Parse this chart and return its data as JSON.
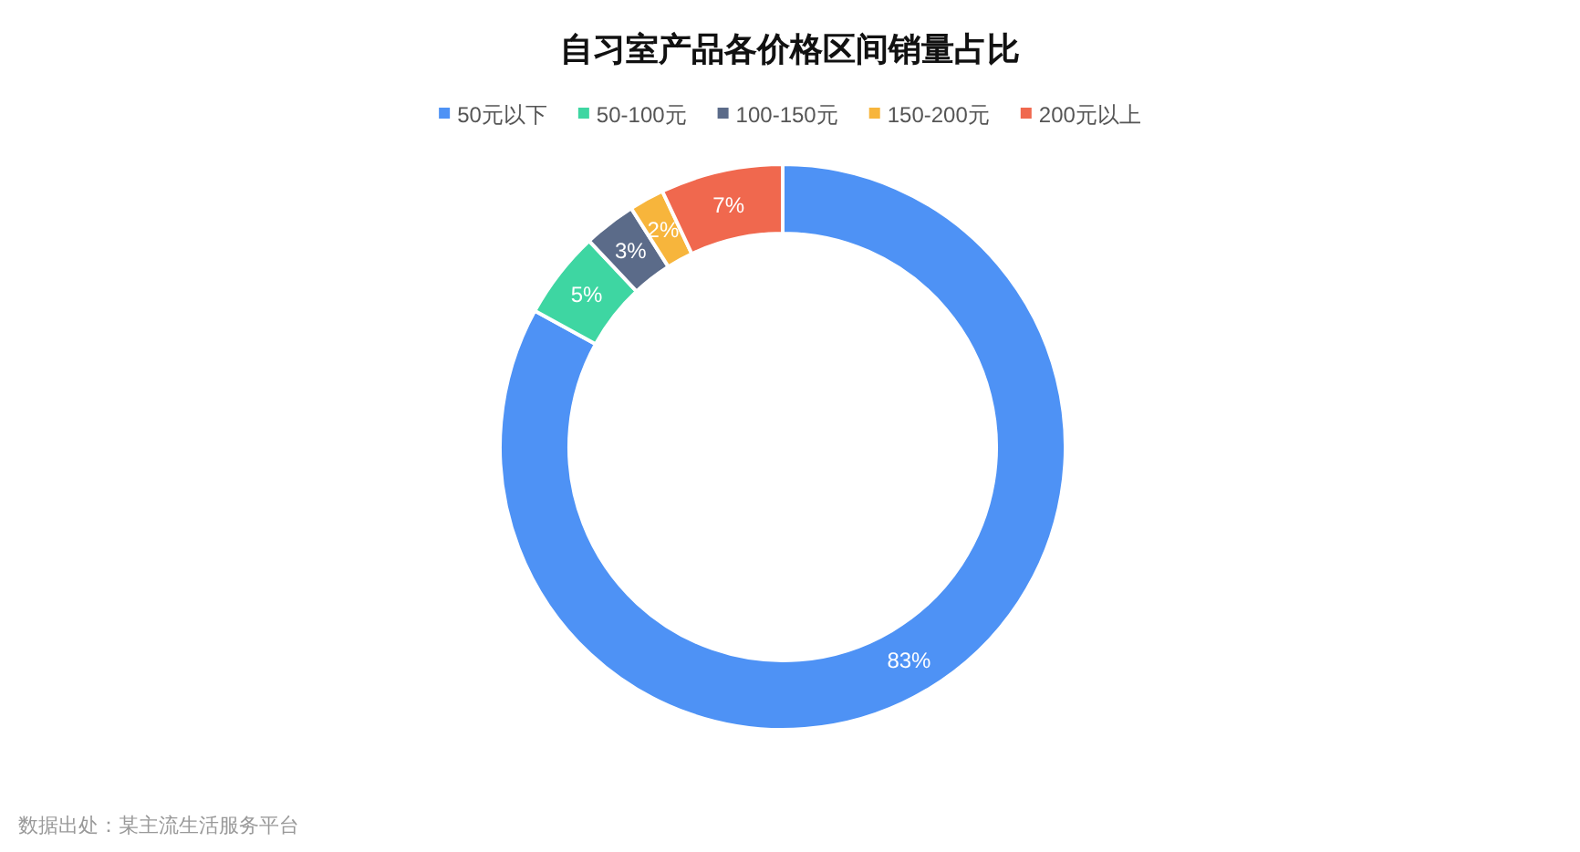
{
  "chart_data": {
    "type": "donut",
    "title": "自习室产品各价格区间销量占比",
    "categories": [
      "50元以下",
      "50-100元",
      "100-150元",
      "150-200元",
      "200元以上"
    ],
    "values": [
      83,
      5,
      3,
      2,
      7
    ],
    "colors": [
      "#4e92f5",
      "#3ed6a2",
      "#5b6b89",
      "#f7b53c",
      "#f0684e"
    ],
    "value_labels": [
      "83%",
      "5%",
      "3%",
      "2%",
      "7%"
    ],
    "legend": "top",
    "annotations": [
      "数据出处：某主流生活服务平台"
    ]
  }
}
